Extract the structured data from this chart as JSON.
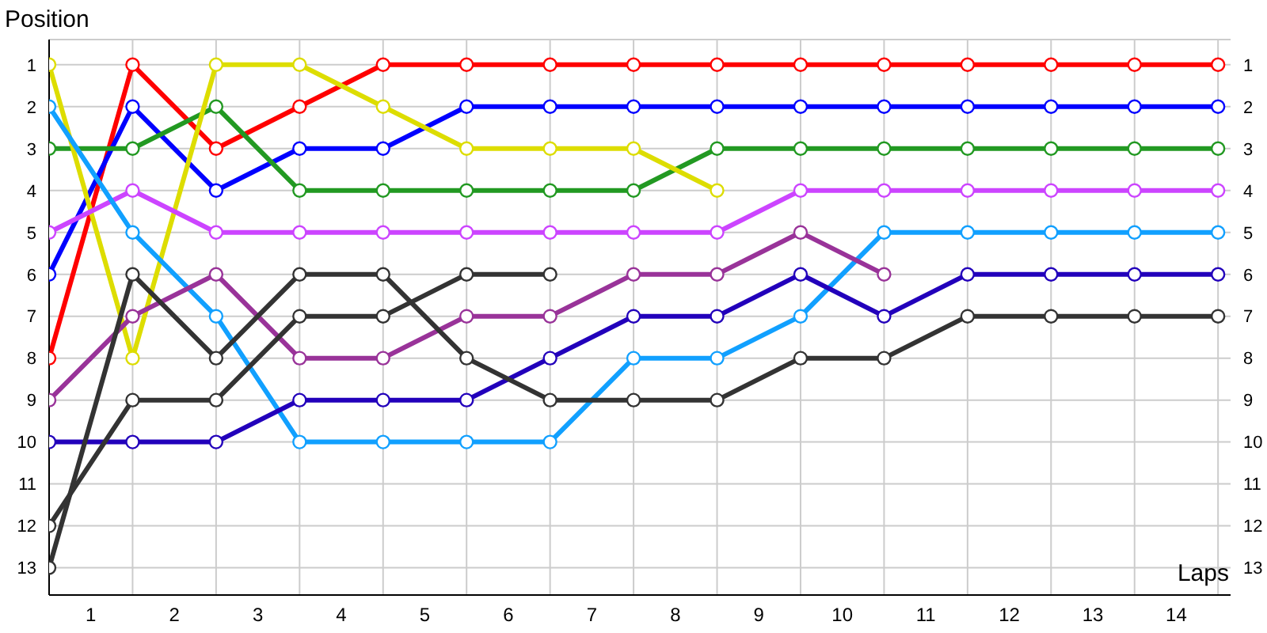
{
  "chart_data": {
    "type": "line",
    "xlabel": "Laps",
    "ylabel": "Position",
    "x": [
      0,
      1,
      2,
      3,
      4,
      5,
      6,
      7,
      8,
      9,
      10,
      11,
      12,
      13,
      14
    ],
    "xlim": [
      0,
      14.15
    ],
    "xticks": [
      {
        "value": 0,
        "label": null
      },
      {
        "value": 0.5,
        "label": "1"
      },
      {
        "value": 1,
        "label": null
      },
      {
        "value": 1.5,
        "label": "2"
      },
      {
        "value": 2,
        "label": null
      },
      {
        "value": 2.5,
        "label": "3"
      },
      {
        "value": 3,
        "label": null
      },
      {
        "value": 3.5,
        "label": "4"
      },
      {
        "value": 4,
        "label": null
      },
      {
        "value": 4.5,
        "label": "5"
      },
      {
        "value": 5,
        "label": null
      },
      {
        "value": 5.5,
        "label": "6"
      },
      {
        "value": 6,
        "label": null
      },
      {
        "value": 6.5,
        "label": "7"
      },
      {
        "value": 7,
        "label": null
      },
      {
        "value": 7.5,
        "label": "8"
      },
      {
        "value": 8,
        "label": null
      },
      {
        "value": 8.5,
        "label": "9"
      },
      {
        "value": 9,
        "label": null
      },
      {
        "value": 9.5,
        "label": "10"
      },
      {
        "value": 10,
        "label": null
      },
      {
        "value": 10.5,
        "label": "11"
      },
      {
        "value": 11,
        "label": null
      },
      {
        "value": 11.5,
        "label": "12"
      },
      {
        "value": 12,
        "label": null
      },
      {
        "value": 12.5,
        "label": "13"
      },
      {
        "value": 13,
        "label": null
      },
      {
        "value": 13.5,
        "label": "14"
      },
      {
        "value": 14,
        "label": null
      }
    ],
    "ylim": [
      13.65,
      0.4
    ],
    "yticks": [
      1,
      2,
      3,
      4,
      5,
      6,
      7,
      8,
      9,
      10,
      11,
      12,
      13
    ],
    "y2lim": [
      13.65,
      0.4
    ],
    "y2ticks": [
      1,
      2,
      3,
      4,
      5,
      6,
      7,
      8,
      9,
      10,
      11,
      12,
      13
    ],
    "grid": true,
    "marker": "circle",
    "line_style": "solid",
    "series": [
      {
        "color": "#ff0000",
        "values": [
          8,
          1,
          3,
          2,
          1,
          1,
          1,
          1,
          1,
          1,
          1,
          1,
          1,
          1,
          1
        ]
      },
      {
        "color": "#0000ff",
        "values": [
          6,
          2,
          4,
          3,
          3,
          2,
          2,
          2,
          2,
          2,
          2,
          2,
          2,
          2,
          2
        ]
      },
      {
        "color": "#229922",
        "values": [
          3,
          3,
          2,
          4,
          4,
          4,
          4,
          4,
          3,
          3,
          3,
          3,
          3,
          3,
          3
        ]
      },
      {
        "color": "#dddd00",
        "values": [
          1,
          8,
          1,
          1,
          2,
          3,
          3,
          3,
          4,
          null,
          null,
          null,
          null,
          null,
          null
        ]
      },
      {
        "color": "#cc44ff",
        "values": [
          5,
          4,
          5,
          5,
          5,
          5,
          5,
          5,
          5,
          4,
          4,
          4,
          4,
          4,
          4
        ]
      },
      {
        "color": "#11a0ff",
        "values": [
          2,
          5,
          7,
          10,
          10,
          10,
          10,
          8,
          8,
          7,
          5,
          5,
          5,
          5,
          5
        ]
      },
      {
        "color": "#2200bb",
        "values": [
          10,
          10,
          10,
          9,
          9,
          9,
          8,
          7,
          7,
          6,
          7,
          6,
          6,
          6,
          6
        ]
      },
      {
        "color": "#993399",
        "values": [
          9,
          7,
          6,
          8,
          8,
          7,
          7,
          6,
          6,
          5,
          6,
          null,
          null,
          null,
          null
        ]
      },
      {
        "color": "#333333",
        "values": [
          13,
          6,
          8,
          6,
          6,
          8,
          9,
          9,
          9,
          8,
          8,
          7,
          7,
          7,
          7
        ]
      },
      {
        "color": "#333333",
        "values": [
          12,
          9,
          9,
          7,
          7,
          6,
          6,
          null,
          null,
          null,
          null,
          null,
          null,
          null,
          null
        ]
      }
    ]
  }
}
